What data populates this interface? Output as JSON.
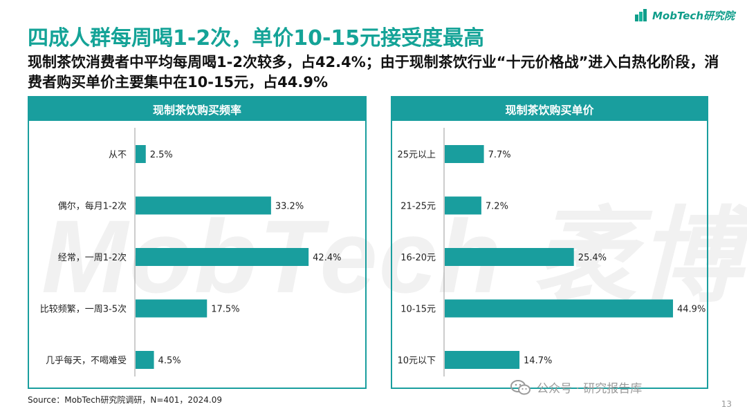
{
  "header": {
    "title": "四成人群每周喝1-2次，单价10-15元接受度最高",
    "subtitle": "现制茶饮消费者中平均每周喝1-2次较多，占42.4%；由于现制茶饮行业“十元价格战”进入白热化阶段，消费者购买单价主要集中在10-15元，占44.9%"
  },
  "brand": {
    "logo_text": "MobTech研究院",
    "watermark": "MobTech 袤博",
    "accent_color": "#199e9e"
  },
  "footer": {
    "source": "Source：MobTech研究院调研，N=401，2024.09",
    "wechat": "公众号 · 研究报告库",
    "page_number": "13"
  },
  "chart_data": [
    {
      "type": "bar",
      "orientation": "horizontal",
      "title": "现制茶饮购买频率",
      "categories": [
        "从不",
        "偶尔，每月1-2次",
        "经常，一周1-2次",
        "比较频繁，一周3-5次",
        "几乎每天，不喝难受"
      ],
      "values": [
        2.5,
        33.2,
        42.4,
        17.5,
        4.5
      ],
      "labels": [
        "2.5%",
        "33.2%",
        "42.4%",
        "17.5%",
        "4.5%"
      ],
      "unit": "%",
      "xlim": [
        0,
        50
      ],
      "color": "#199e9e",
      "grid": false
    },
    {
      "type": "bar",
      "orientation": "horizontal",
      "title": "现制茶饮购买单价",
      "categories": [
        "25元以上",
        "21-25元",
        "16-20元",
        "10-15元",
        "10元以下"
      ],
      "values": [
        7.7,
        7.2,
        25.4,
        44.9,
        14.7
      ],
      "labels": [
        "7.7%",
        "7.2%",
        "25.4%",
        "44.9%",
        "14.7%"
      ],
      "unit": "%",
      "xlim": [
        0,
        50
      ],
      "color": "#199e9e",
      "grid": false
    }
  ]
}
